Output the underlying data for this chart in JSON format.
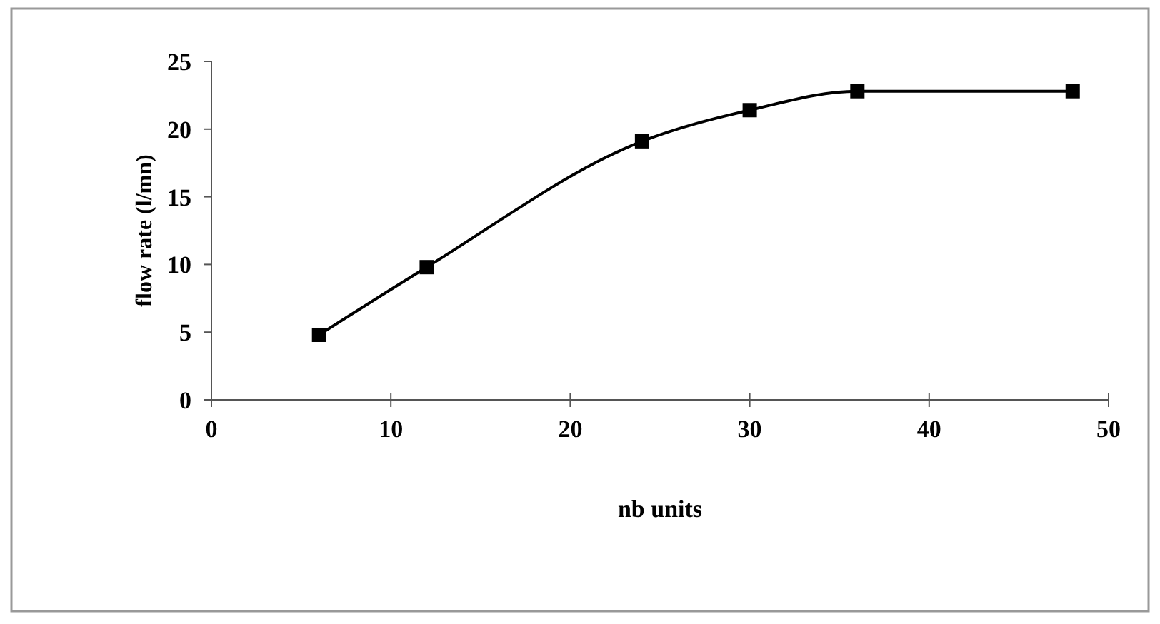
{
  "chart_data": {
    "type": "line",
    "xlabel": "nb units",
    "ylabel": "flow rate (l/mn)",
    "x": [
      6,
      12,
      24,
      30,
      36,
      48
    ],
    "series": [
      {
        "color": "#000000",
        "values": [
          4.8,
          9.8,
          19.1,
          21.4,
          22.8,
          22.8
        ]
      }
    ],
    "xlim": [
      0,
      50
    ],
    "xticks": [
      0,
      10,
      20,
      30,
      40,
      50
    ],
    "ylim": [
      0,
      25
    ],
    "yticks": [
      0,
      5,
      10,
      15,
      20,
      25
    ],
    "grid": false,
    "marker": "square",
    "line_style": "solid"
  }
}
